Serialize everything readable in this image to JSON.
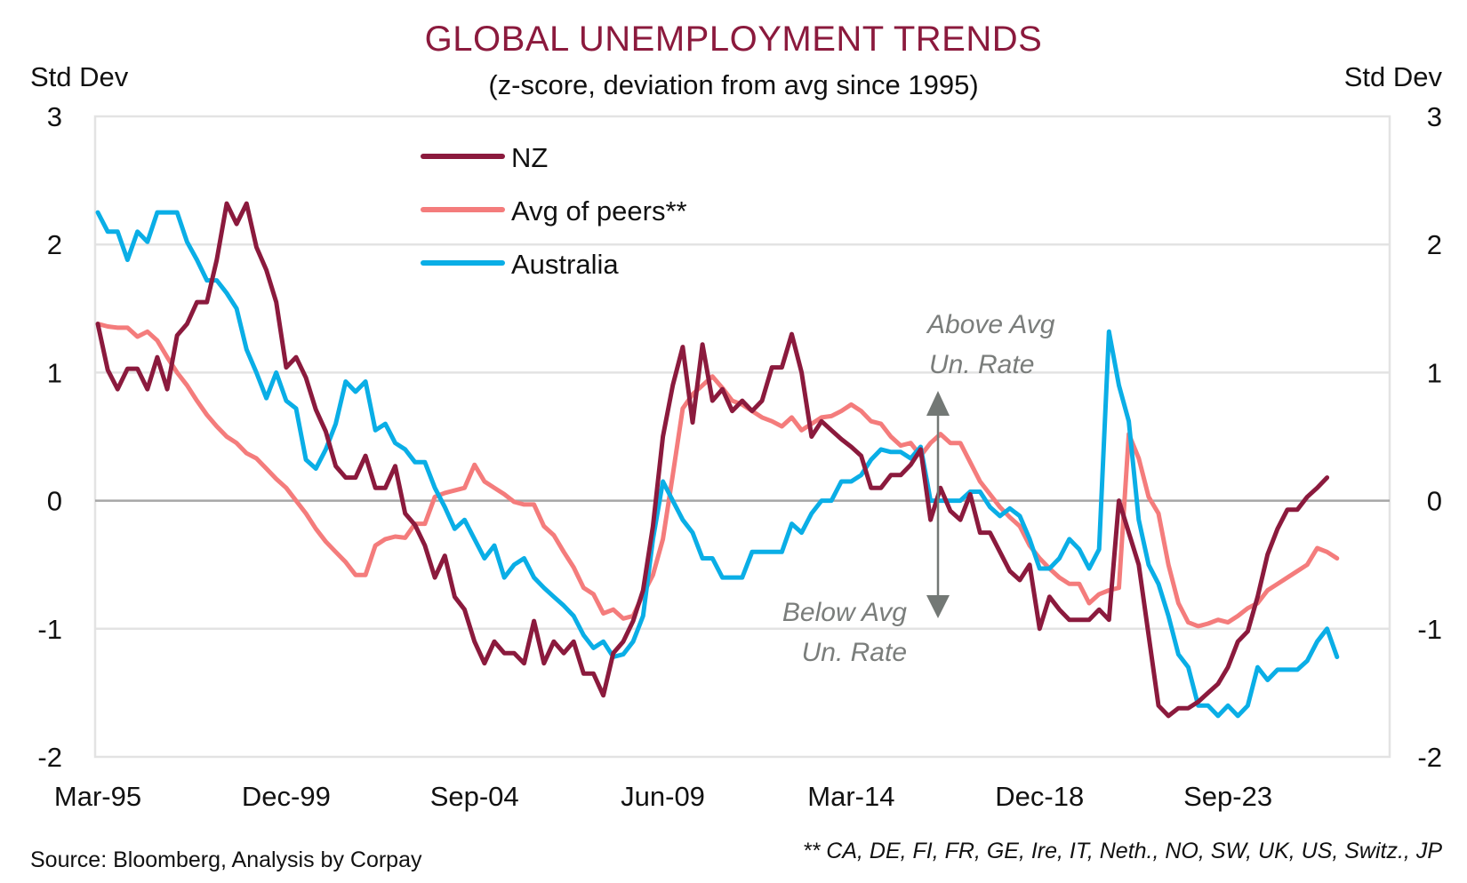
{
  "chart_data": {
    "type": "line",
    "title": "GLOBAL UNEMPLOYMENT TRENDS",
    "subtitle": "(z-score, deviation from avg since 1995)",
    "ylabel_left": "Std Dev",
    "ylabel_right": "Std Dev",
    "xlabel": "",
    "ylim": [
      -2,
      3
    ],
    "yticks": [
      3,
      2,
      1,
      0,
      -1,
      -2
    ],
    "ytick_labels": [
      "3",
      "2",
      "1",
      "0",
      "-1",
      "-2"
    ],
    "x_frequency": "quarterly",
    "x_start": "Mar-95",
    "xtick_labels": [
      "Mar-95",
      "Dec-99",
      "Sep-04",
      "Jun-09",
      "Mar-14",
      "Dec-18",
      "Sep-23"
    ],
    "xtick_every_n_points": 19,
    "grid": true,
    "legend_position": "top-left",
    "colors": {
      "NZ": "#8B1A3D",
      "Avg of peers**": "#F47C7C",
      "Australia": "#0AAEE6",
      "zero_line": "#A6A6A6",
      "grid": "#E3E3E3",
      "annotation": "#737875"
    },
    "series": [
      {
        "name": "NZ",
        "values": [
          1.38,
          1.02,
          0.87,
          1.03,
          1.03,
          0.87,
          1.12,
          0.87,
          1.29,
          1.38,
          1.55,
          1.55,
          1.88,
          2.32,
          2.16,
          2.32,
          1.98,
          1.8,
          1.55,
          1.04,
          1.12,
          0.96,
          0.71,
          0.54,
          0.27,
          0.18,
          0.18,
          0.35,
          0.1,
          0.1,
          0.27,
          -0.1,
          -0.19,
          -0.35,
          -0.6,
          -0.43,
          -0.75,
          -0.85,
          -1.1,
          -1.27,
          -1.1,
          -1.19,
          -1.19,
          -1.27,
          -0.94,
          -1.27,
          -1.1,
          -1.19,
          -1.1,
          -1.35,
          -1.35,
          -1.52,
          -1.19,
          -1.1,
          -0.94,
          -0.7,
          -0.2,
          0.5,
          0.9,
          1.2,
          0.61,
          1.22,
          0.78,
          0.87,
          0.7,
          0.78,
          0.7,
          0.78,
          1.04,
          1.04,
          1.3,
          1.0,
          0.5,
          0.62,
          0.55,
          0.48,
          0.42,
          0.35,
          0.1,
          0.1,
          0.2,
          0.2,
          0.28,
          0.4,
          -0.15,
          0.1,
          -0.08,
          -0.15,
          0.05,
          -0.25,
          -0.25,
          -0.4,
          -0.55,
          -0.62,
          -0.5,
          -1.0,
          -0.75,
          -0.85,
          -0.93,
          -0.93,
          -0.93,
          -0.85,
          -0.93,
          0.0,
          -0.25,
          -0.5,
          -1.05,
          -1.6,
          -1.68,
          -1.62,
          -1.62,
          -1.57,
          -1.5,
          -1.43,
          -1.3,
          -1.1,
          -1.02,
          -0.75,
          -0.42,
          -0.22,
          -0.07,
          -0.07,
          0.03,
          0.1,
          0.18
        ]
      },
      {
        "name": "Avg of peers**",
        "values": [
          1.38,
          1.36,
          1.35,
          1.35,
          1.28,
          1.32,
          1.25,
          1.12,
          1.0,
          0.9,
          0.78,
          0.67,
          0.58,
          0.5,
          0.45,
          0.37,
          0.33,
          0.25,
          0.17,
          0.1,
          0.0,
          -0.1,
          -0.22,
          -0.32,
          -0.4,
          -0.48,
          -0.58,
          -0.58,
          -0.35,
          -0.3,
          -0.28,
          -0.29,
          -0.18,
          -0.18,
          0.03,
          0.06,
          0.08,
          0.1,
          0.28,
          0.15,
          0.1,
          0.05,
          -0.01,
          -0.03,
          -0.03,
          -0.2,
          -0.27,
          -0.4,
          -0.52,
          -0.68,
          -0.73,
          -0.88,
          -0.85,
          -0.92,
          -0.9,
          -0.73,
          -0.58,
          -0.3,
          0.2,
          0.72,
          0.83,
          0.9,
          0.97,
          0.88,
          0.78,
          0.75,
          0.7,
          0.65,
          0.62,
          0.58,
          0.65,
          0.55,
          0.6,
          0.65,
          0.66,
          0.7,
          0.75,
          0.7,
          0.62,
          0.6,
          0.5,
          0.43,
          0.45,
          0.35,
          0.45,
          0.52,
          0.45,
          0.45,
          0.3,
          0.15,
          0.05,
          -0.05,
          -0.13,
          -0.2,
          -0.35,
          -0.45,
          -0.53,
          -0.6,
          -0.65,
          -0.65,
          -0.8,
          -0.73,
          -0.7,
          -0.68,
          0.52,
          0.33,
          0.03,
          -0.1,
          -0.5,
          -0.8,
          -0.95,
          -0.98,
          -0.96,
          -0.93,
          -0.95,
          -0.9,
          -0.84,
          -0.8,
          -0.7,
          -0.65,
          -0.6,
          -0.55,
          -0.5,
          -0.37,
          -0.4,
          -0.45
        ]
      },
      {
        "name": "Australia",
        "values": [
          2.25,
          2.1,
          2.1,
          1.88,
          2.1,
          2.02,
          2.25,
          2.25,
          2.25,
          2.02,
          1.88,
          1.72,
          1.72,
          1.62,
          1.5,
          1.18,
          1.0,
          0.8,
          1.0,
          0.78,
          0.72,
          0.32,
          0.25,
          0.4,
          0.6,
          0.93,
          0.85,
          0.93,
          0.55,
          0.6,
          0.45,
          0.4,
          0.3,
          0.3,
          0.1,
          -0.05,
          -0.22,
          -0.15,
          -0.3,
          -0.45,
          -0.35,
          -0.6,
          -0.5,
          -0.45,
          -0.6,
          -0.68,
          -0.75,
          -0.82,
          -0.9,
          -1.05,
          -1.15,
          -1.1,
          -1.22,
          -1.2,
          -1.1,
          -0.9,
          -0.3,
          0.15,
          0.0,
          -0.15,
          -0.25,
          -0.45,
          -0.45,
          -0.6,
          -0.6,
          -0.6,
          -0.4,
          -0.4,
          -0.4,
          -0.4,
          -0.18,
          -0.25,
          -0.1,
          0.0,
          0.0,
          0.15,
          0.15,
          0.2,
          0.32,
          0.4,
          0.38,
          0.38,
          0.33,
          0.42,
          0.0,
          0.0,
          0.0,
          0.0,
          0.07,
          0.07,
          -0.05,
          -0.12,
          -0.06,
          -0.12,
          -0.3,
          -0.53,
          -0.53,
          -0.45,
          -0.3,
          -0.38,
          -0.53,
          -0.38,
          1.32,
          0.9,
          0.62,
          -0.15,
          -0.5,
          -0.65,
          -0.9,
          -1.2,
          -1.3,
          -1.6,
          -1.6,
          -1.68,
          -1.6,
          -1.68,
          -1.6,
          -1.3,
          -1.4,
          -1.32,
          -1.32,
          -1.32,
          -1.25,
          -1.1,
          -1.0,
          -1.22
        ]
      }
    ],
    "annotations": [
      {
        "text_line1": "Above Avg",
        "text_line2": "Un. Rate",
        "direction": "up"
      },
      {
        "text_line1": "Below Avg",
        "text_line2": "Un. Rate",
        "direction": "down"
      }
    ]
  },
  "footer": {
    "source": "Source: Bloomberg, Analysis by Corpay",
    "footnote": "** CA, DE, FI, FR, GE, Ire, IT, Neth., NO, SW, UK, US, Switz., JP"
  }
}
